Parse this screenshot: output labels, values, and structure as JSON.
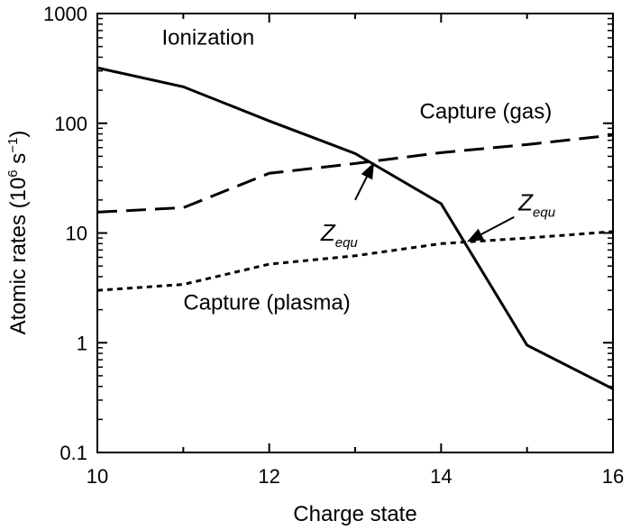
{
  "chart_data": {
    "type": "line",
    "title": "",
    "xlabel": "Charge state",
    "ylabel_prefix": "Atomic rates (10",
    "ylabel_sup1": "6",
    "ylabel_mid": " s",
    "ylabel_sup2": "−1",
    "ylabel_suffix": ")",
    "xlim": [
      10,
      16
    ],
    "ylim": [
      0.1,
      1000
    ],
    "yscale": "log",
    "xticks": [
      10,
      12,
      14,
      16
    ],
    "xtick_labels": [
      "10",
      "12",
      "14",
      "16"
    ],
    "yticks": [
      0.1,
      1,
      10,
      100,
      1000
    ],
    "ytick_labels": [
      "0.1",
      "1",
      "10",
      "100",
      "1000"
    ],
    "series": [
      {
        "name": "Ionization",
        "style": "solid",
        "x": [
          10,
          11,
          12,
          13,
          14,
          15,
          16
        ],
        "y": [
          320,
          215,
          105,
          53,
          18.5,
          0.95,
          0.38
        ]
      },
      {
        "name": "Capture (gas)",
        "style": "dashed",
        "x": [
          10,
          11,
          12,
          13,
          14,
          15,
          16
        ],
        "y": [
          15.5,
          17,
          35,
          43,
          54,
          64,
          78
        ]
      },
      {
        "name": "Capture (plasma)",
        "style": "dotted",
        "x": [
          10,
          11,
          12,
          13,
          14,
          15,
          16
        ],
        "y": [
          3.0,
          3.4,
          5.2,
          6.2,
          8.0,
          9.0,
          10.3
        ]
      }
    ],
    "annotations": [
      {
        "name": "z-equ-gas",
        "label": "Z",
        "sub": "equ",
        "text_x": 12.6,
        "text_y": 8.5,
        "arrow_from": [
          13.0,
          20
        ],
        "arrow_to": [
          13.22,
          44
        ]
      },
      {
        "name": "z-equ-plasma",
        "label": "Z",
        "sub": "equ",
        "text_x": 14.9,
        "text_y": 16,
        "arrow_from": [
          14.85,
          14
        ],
        "arrow_to": [
          14.3,
          8.3
        ]
      }
    ],
    "series_labels": [
      {
        "name": "ionization-label",
        "text": "Ionization",
        "x": 10.75,
        "y": 520
      },
      {
        "name": "capture-gas-label",
        "text": "Capture (gas)",
        "x": 13.75,
        "y": 110
      },
      {
        "name": "capture-plasma-label",
        "text": "Capture (plasma)",
        "x": 11.0,
        "y": 2.0
      }
    ]
  }
}
